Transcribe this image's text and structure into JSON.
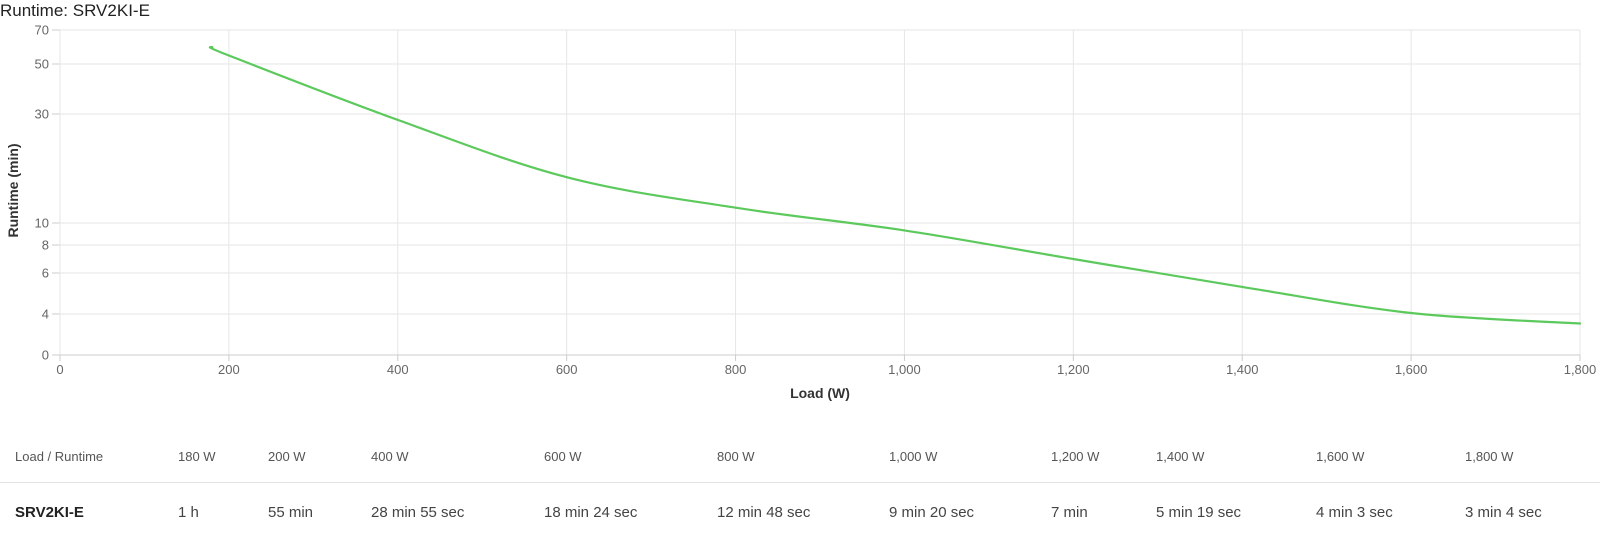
{
  "chart_data": {
    "type": "line",
    "title": "Runtime: SRV2KI-E",
    "xlabel": "Load (W)",
    "ylabel": "Runtime (min)",
    "xlim": [
      0,
      1800
    ],
    "x_ticks": [
      "0",
      "200",
      "400",
      "600",
      "800",
      "1,000",
      "1,200",
      "1,400",
      "1,600",
      "1,800"
    ],
    "y_ticks": [
      "0",
      "4",
      "6",
      "8",
      "10",
      "30",
      "50",
      "70"
    ],
    "y_scale": "nonlinear (custom tick spacing)",
    "grid": true,
    "legend": "none",
    "series": [
      {
        "color": "#5cc95c",
        "x": [
          180,
          200,
          400,
          600,
          800,
          1000,
          1200,
          1400,
          1600,
          1800
        ],
        "y": [
          60,
          55,
          28.92,
          18.4,
          12.8,
          9.33,
          7,
          5.32,
          4.05,
          3.07
        ]
      }
    ]
  },
  "table": {
    "header_label": "Load / Runtime",
    "loads": [
      "180 W",
      "200 W",
      "400 W",
      "600 W",
      "800 W",
      "1,000 W",
      "1,200 W",
      "1,400 W",
      "1,600 W",
      "1,800 W"
    ],
    "model": "SRV2KI-E",
    "runtimes": [
      "1 h",
      "55 min",
      "28 min 55 sec",
      "18 min 24 sec",
      "12 min 48 sec",
      "9 min 20 sec",
      "7 min",
      "5 min 19 sec",
      "4 min 3 sec",
      "3 min 4 sec"
    ]
  }
}
